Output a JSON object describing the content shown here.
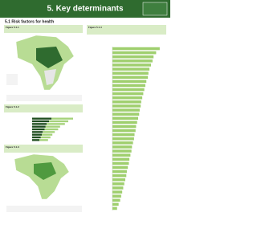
{
  "header": {
    "title": "5. Key determinants"
  },
  "section": {
    "title": "5.1 Risk factors for health"
  },
  "captions": [
    "Figure 5.1.1",
    "Figure 5.1.2",
    "Figure 5.1.3",
    "Figure 5.1.4"
  ],
  "bar_charts": [
    {
      "type": "bar",
      "orientation": "horizontal",
      "xlim": [
        0,
        100
      ],
      "color": "#9fcf6e",
      "categories": [
        null,
        null,
        null,
        null,
        null,
        null,
        null,
        null,
        null,
        null,
        null,
        null,
        null,
        null,
        null,
        null,
        null,
        null,
        null,
        null,
        null,
        null,
        null,
        null,
        null,
        null,
        null,
        null,
        null,
        null,
        null,
        null,
        null,
        null,
        null,
        null,
        null,
        null,
        null,
        null
      ],
      "values": [
        92,
        85,
        80,
        78,
        75,
        72,
        70,
        69,
        66,
        64,
        62,
        60,
        58,
        56,
        55,
        53,
        52,
        50,
        48,
        46,
        45,
        43,
        42,
        40,
        38,
        37,
        35,
        33,
        32,
        30,
        28,
        27,
        25,
        23,
        21,
        19,
        17,
        15,
        12,
        9
      ]
    },
    {
      "type": "bar",
      "orientation": "horizontal",
      "xlim": [
        0,
        100
      ],
      "categories": [
        null,
        null,
        null,
        null,
        null,
        null,
        null,
        null,
        null
      ],
      "series": [
        {
          "color": "#1f4d1f",
          "values": [
            40,
            35,
            30,
            28,
            26,
            22,
            20,
            18,
            15
          ]
        },
        {
          "color": "#a5d27a",
          "values": [
            45,
            40,
            38,
            30,
            28,
            25,
            22,
            20,
            18
          ]
        }
      ]
    }
  ]
}
